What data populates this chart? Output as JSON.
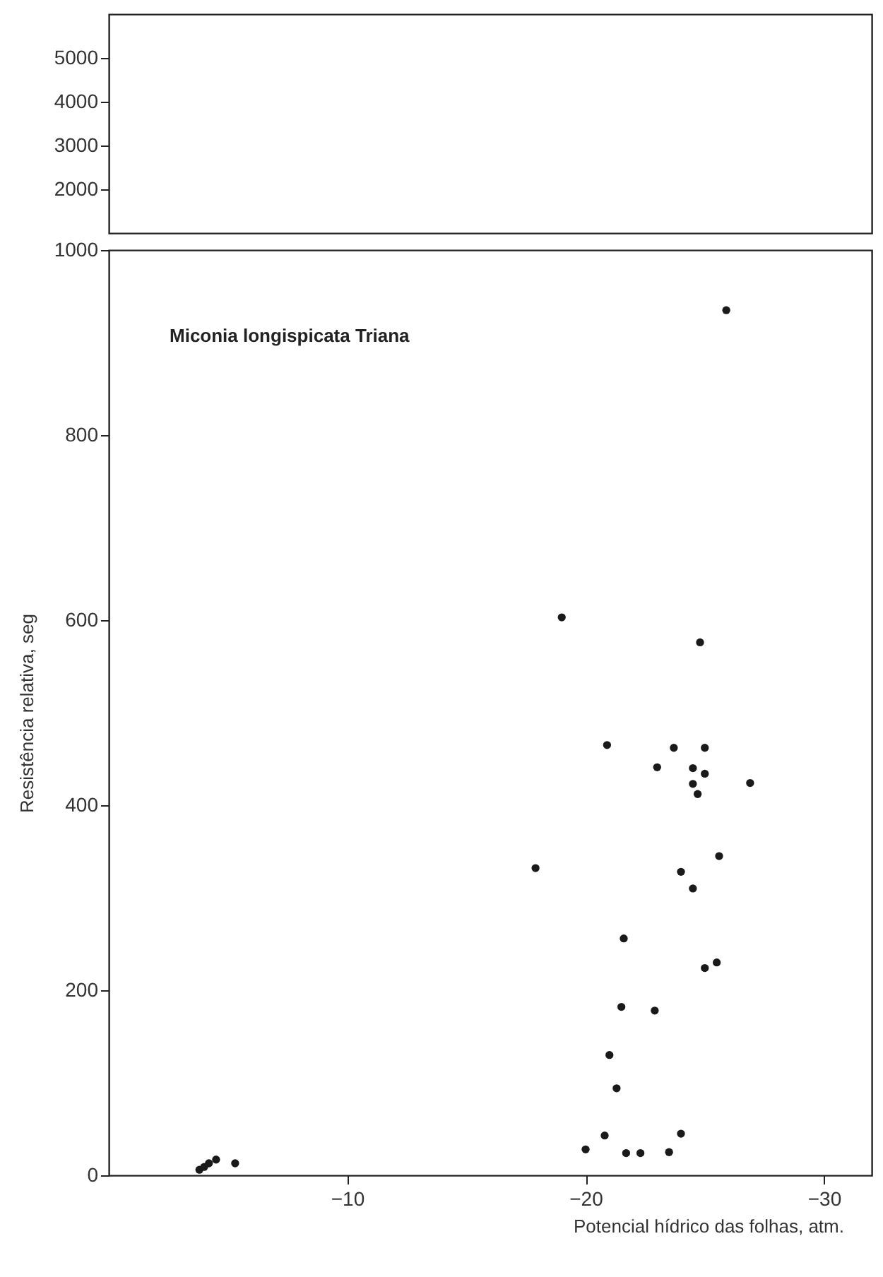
{
  "chart_data": [
    {
      "type": "scatter",
      "xlim": [
        0,
        -32
      ],
      "ylim": [
        1000,
        6000
      ],
      "yticks": [
        2000,
        3000,
        4000,
        5000
      ],
      "tick_labels": "y",
      "grid": false
    },
    {
      "type": "scatter",
      "xlabel": "Potencial hídrico das folhas, atm.",
      "ylabel": "Resistência relativa, seg",
      "annotations": [
        "Miconia longispicata Triana"
      ],
      "xlim": [
        0,
        -32
      ],
      "xticks": [
        -10,
        -20,
        -30
      ],
      "ylim": [
        0,
        1000
      ],
      "yticks": [
        0,
        200,
        400,
        600,
        800,
        1000
      ],
      "grid": false,
      "marker": "circle",
      "x": [
        -3.8,
        -4.0,
        -4.2,
        -4.5,
        -5.3,
        -17.9,
        -19.0,
        -20.0,
        -20.8,
        -20.9,
        -21.0,
        -21.3,
        -21.5,
        -21.6,
        -21.7,
        -22.3,
        -22.9,
        -23.0,
        -23.5,
        -23.7,
        -24.0,
        -24.0,
        -24.5,
        -24.5,
        -24.5,
        -24.7,
        -24.8,
        -25.0,
        -25.0,
        -25.0,
        -25.5,
        -25.6,
        -25.9,
        -26.9
      ],
      "series": [
        {
          "color": "#1a1a1a",
          "values": [
            6,
            9,
            13,
            17,
            13,
            332,
            603,
            28,
            43,
            465,
            130,
            94,
            182,
            256,
            24,
            24,
            178,
            441,
            25,
            462,
            45,
            328,
            440,
            423,
            310,
            412,
            576,
            462,
            434,
            224,
            230,
            345,
            935,
            424
          ]
        }
      ]
    }
  ]
}
